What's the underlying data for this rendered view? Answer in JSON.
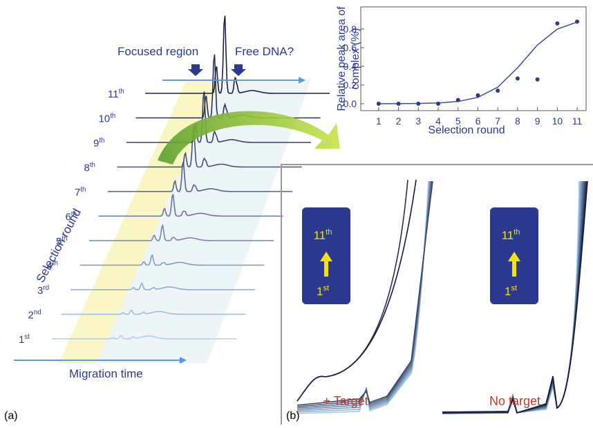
{
  "chart_data": {
    "type": "scatter",
    "ylabel": [
      "Relative peak area of",
      "complex (%)"
    ],
    "xlabel": "Selection round",
    "x": [
      1,
      2,
      3,
      4,
      5,
      6,
      7,
      8,
      9,
      10,
      11
    ],
    "series": [
      {
        "color": "#2b3990",
        "values": [
          0.0,
          0.0,
          0.0,
          0.0,
          0.04,
          0.09,
          0.14,
          0.27,
          0.26,
          0.86,
          0.88
        ]
      }
    ],
    "fit": {
      "color": "#3a4a9a",
      "x": [
        1,
        2,
        3,
        4,
        5,
        6,
        7,
        8,
        9,
        10,
        11
      ],
      "values": [
        0.0,
        0.001,
        0.003,
        0.008,
        0.024,
        0.068,
        0.178,
        0.385,
        0.63,
        0.8,
        0.875
      ]
    },
    "xlim": [
      0.1,
      11.45
    ],
    "ylim": [
      -0.074,
      1.037
    ],
    "xticks": [
      1,
      2,
      3,
      4,
      5,
      6,
      7,
      8,
      9,
      10,
      11
    ],
    "yticks": [
      {
        "value": 0,
        "label": "0.0"
      },
      0.2,
      0.4,
      0.6,
      0.8
    ]
  },
  "panel_a": {
    "label": "(a)",
    "focused": "Focused region",
    "free": "Free DNA?",
    "axis_round": "Selection round",
    "axis_time": "Migration time",
    "rounds": [
      {
        "num": "1",
        "sup": "st"
      },
      {
        "num": "2",
        "sup": "nd"
      },
      {
        "num": "3",
        "sup": "rd"
      },
      {
        "num": "4",
        "sup": "th"
      },
      {
        "num": "5",
        "sup": "th"
      },
      {
        "num": "6",
        "sup": "th"
      },
      {
        "num": "7",
        "sup": "th"
      },
      {
        "num": "8",
        "sup": "th"
      },
      {
        "num": "9",
        "sup": "th"
      },
      {
        "num": "10",
        "sup": "th"
      },
      {
        "num": "11",
        "sup": "th"
      }
    ]
  },
  "panel_b": {
    "label": "(b)",
    "target": "+ Target",
    "no_target": "No target",
    "box_top": {
      "num": "11",
      "sup": "th"
    },
    "box_bottom": {
      "num": "1",
      "sup": "st"
    }
  }
}
